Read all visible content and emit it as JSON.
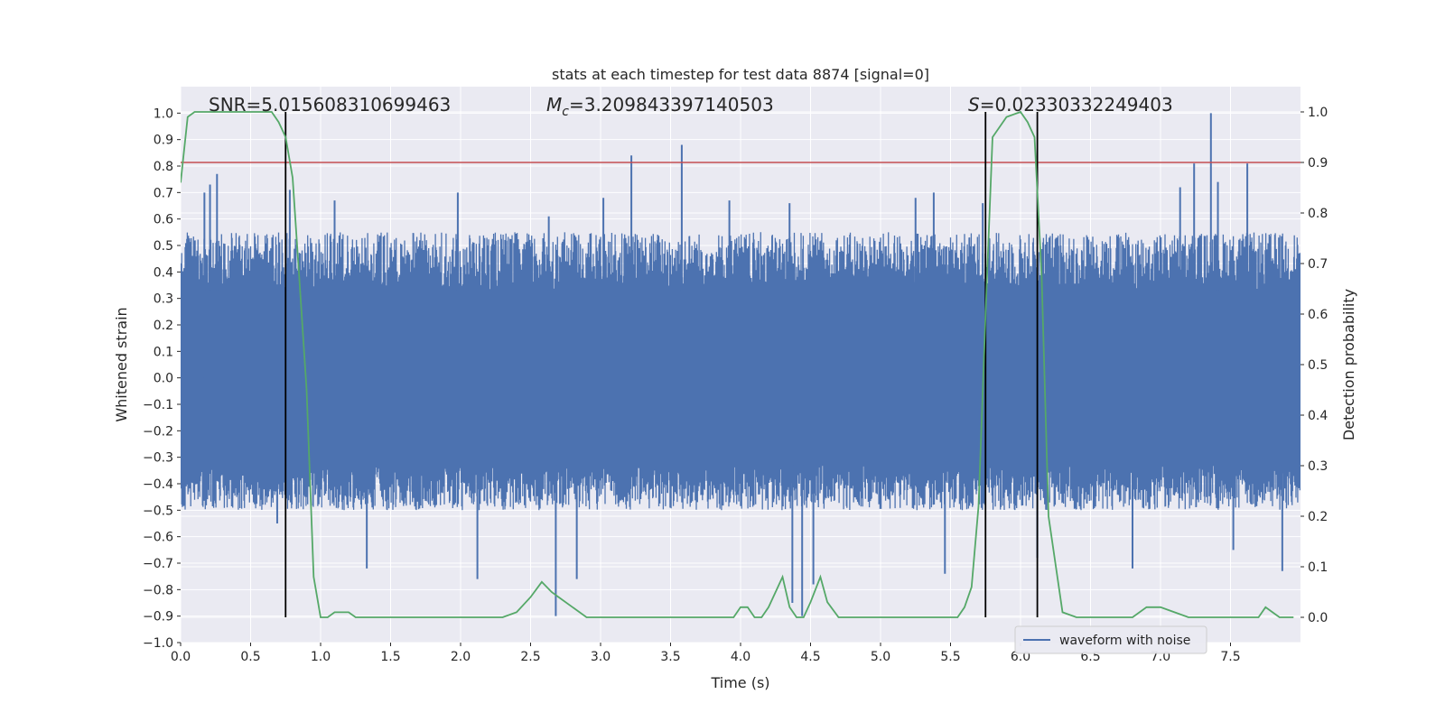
{
  "chart_data": {
    "type": "line",
    "title": "stats at each timestep for test data 8874 [signal=0]",
    "xlabel": "Time (s)",
    "ylabel_left": "Whitened strain",
    "ylabel_right": "Detection probability",
    "xlim": [
      0.0,
      8.0
    ],
    "ylim_left": [
      -1.0,
      1.1
    ],
    "ylim_right": [
      -0.05,
      1.05
    ],
    "x_ticks": [
      0.0,
      0.5,
      1.0,
      1.5,
      2.0,
      2.5,
      3.0,
      3.5,
      4.0,
      4.5,
      5.0,
      5.5,
      6.0,
      6.5,
      7.0,
      7.5
    ],
    "x_tick_labels": [
      "0.0",
      "0.5",
      "1.0",
      "1.5",
      "2.0",
      "2.5",
      "3.0",
      "3.5",
      "4.0",
      "4.5",
      "5.0",
      "5.5",
      "6.0",
      "6.5",
      "7.0",
      "7.5"
    ],
    "y_left_ticks": [
      -1.0,
      -0.9,
      -0.8,
      -0.7,
      -0.6,
      -0.5,
      -0.4,
      -0.3,
      -0.2,
      -0.1,
      0.0,
      0.1,
      0.2,
      0.3,
      0.4,
      0.5,
      0.6,
      0.7,
      0.8,
      0.9,
      1.0
    ],
    "y_left_tick_labels": [
      "−1.0",
      "−0.9",
      "−0.8",
      "−0.7",
      "−0.6",
      "−0.5",
      "−0.4",
      "−0.3",
      "−0.2",
      "−0.1",
      "0.0",
      "0.1",
      "0.2",
      "0.3",
      "0.4",
      "0.5",
      "0.6",
      "0.7",
      "0.8",
      "0.9",
      "1.0"
    ],
    "y_right_ticks": [
      0.0,
      0.1,
      0.2,
      0.3,
      0.4,
      0.5,
      0.6,
      0.7,
      0.8,
      0.9,
      1.0
    ],
    "y_right_tick_labels": [
      "0.0",
      "0.1",
      "0.2",
      "0.3",
      "0.4",
      "0.5",
      "0.6",
      "0.7",
      "0.8",
      "0.9",
      "1.0"
    ],
    "grid": true,
    "legend_position": "lower-right",
    "annotations": {
      "snr": "SNR=5.015608310699463",
      "mc_symbol": "M",
      "mc_sub": "c",
      "mc_value": "=3.209843397140503",
      "s_symbol": "S",
      "s_value": "=0.02330332249403"
    },
    "colors": {
      "background": "#eaeaf2",
      "grid": "#ffffff",
      "waveform": "#4c72b0",
      "probability": "#55a868",
      "threshold": "#c44e52",
      "event_lines": "#000000"
    },
    "threshold_probability": 0.9,
    "event_lines_x": [
      0.75,
      5.75,
      6.12
    ],
    "series": [
      {
        "name": "waveform with noise",
        "axis": "left",
        "style": "noise-envelope",
        "sample_interval": 0.004,
        "core_range": [
          -0.33,
          0.33
        ],
        "typical_peak_range": [
          -0.5,
          0.55
        ],
        "spikes": [
          {
            "x": 0.17,
            "y": 0.7
          },
          {
            "x": 0.21,
            "y": 0.73
          },
          {
            "x": 0.26,
            "y": 0.77
          },
          {
            "x": 0.69,
            "y": -0.55
          },
          {
            "x": 0.78,
            "y": 0.71
          },
          {
            "x": 1.1,
            "y": 0.67
          },
          {
            "x": 1.33,
            "y": -0.72
          },
          {
            "x": 1.98,
            "y": 0.7
          },
          {
            "x": 2.12,
            "y": -0.76
          },
          {
            "x": 2.63,
            "y": 0.61
          },
          {
            "x": 2.68,
            "y": -0.9
          },
          {
            "x": 2.83,
            "y": -0.76
          },
          {
            "x": 3.02,
            "y": 0.68
          },
          {
            "x": 3.22,
            "y": 0.84
          },
          {
            "x": 3.58,
            "y": 0.88
          },
          {
            "x": 3.92,
            "y": 0.67
          },
          {
            "x": 4.35,
            "y": 0.66
          },
          {
            "x": 4.37,
            "y": -0.85
          },
          {
            "x": 4.44,
            "y": -0.9
          },
          {
            "x": 4.52,
            "y": -0.78
          },
          {
            "x": 5.25,
            "y": 0.68
          },
          {
            "x": 5.38,
            "y": 0.7
          },
          {
            "x": 5.46,
            "y": -0.74
          },
          {
            "x": 5.73,
            "y": 0.66
          },
          {
            "x": 6.12,
            "y": -0.68
          },
          {
            "x": 6.8,
            "y": -0.72
          },
          {
            "x": 7.14,
            "y": 0.72
          },
          {
            "x": 7.24,
            "y": 0.81
          },
          {
            "x": 7.36,
            "y": 1.0
          },
          {
            "x": 7.41,
            "y": 0.74
          },
          {
            "x": 7.52,
            "y": -0.65
          },
          {
            "x": 7.62,
            "y": 0.81
          },
          {
            "x": 7.87,
            "y": -0.73
          }
        ]
      },
      {
        "axis": "right",
        "x": [
          0.0,
          0.05,
          0.1,
          0.15,
          0.2,
          0.3,
          0.4,
          0.5,
          0.6,
          0.65,
          0.7,
          0.75,
          0.8,
          0.85,
          0.9,
          0.95,
          1.0,
          1.05,
          1.1,
          1.2,
          1.25,
          1.3,
          1.4,
          1.6,
          1.8,
          2.0,
          2.2,
          2.3,
          2.4,
          2.5,
          2.58,
          2.65,
          2.7,
          2.8,
          2.9,
          3.0,
          3.2,
          3.4,
          3.6,
          3.8,
          3.95,
          4.0,
          4.05,
          4.1,
          4.15,
          4.2,
          4.3,
          4.35,
          4.4,
          4.45,
          4.5,
          4.57,
          4.62,
          4.7,
          4.8,
          5.0,
          5.2,
          5.4,
          5.55,
          5.6,
          5.65,
          5.7,
          5.75,
          5.8,
          5.9,
          6.0,
          6.05,
          6.1,
          6.15,
          6.2,
          6.3,
          6.4,
          6.6,
          6.8,
          6.9,
          7.0,
          7.1,
          7.2,
          7.4,
          7.6,
          7.7,
          7.75,
          7.8,
          7.85,
          7.95
        ],
        "values": [
          0.86,
          0.99,
          1.0,
          1.0,
          1.0,
          1.0,
          1.0,
          1.0,
          1.0,
          1.0,
          0.98,
          0.95,
          0.87,
          0.66,
          0.45,
          0.08,
          0.0,
          0.0,
          0.01,
          0.01,
          0.0,
          0.0,
          0.0,
          0.0,
          0.0,
          0.0,
          0.0,
          0.0,
          0.01,
          0.04,
          0.07,
          0.05,
          0.04,
          0.02,
          0.0,
          0.0,
          0.0,
          0.0,
          0.0,
          0.0,
          0.0,
          0.02,
          0.02,
          0.0,
          0.0,
          0.02,
          0.08,
          0.02,
          0.0,
          0.0,
          0.03,
          0.08,
          0.03,
          0.0,
          0.0,
          0.0,
          0.0,
          0.0,
          0.0,
          0.02,
          0.06,
          0.22,
          0.6,
          0.95,
          0.99,
          1.0,
          0.98,
          0.95,
          0.68,
          0.2,
          0.01,
          0.0,
          0.0,
          0.0,
          0.02,
          0.02,
          0.01,
          0.0,
          0.0,
          0.0,
          0.0,
          0.02,
          0.01,
          0.0,
          0.0
        ]
      }
    ]
  }
}
